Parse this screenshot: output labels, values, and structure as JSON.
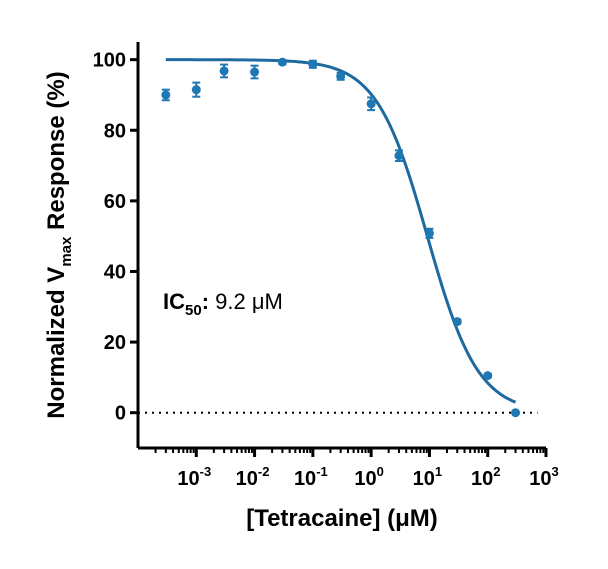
{
  "chart_data": {
    "type": "scatter",
    "title": "",
    "xlabel": "[Tetracaine] (μM)",
    "ylabel_parts": {
      "pre": "Normalized V",
      "sub": "max",
      "post": " Response (%)"
    },
    "x_scale": "log",
    "xlim": [
      0.0001,
      1000
    ],
    "ylim": [
      -10,
      105
    ],
    "x_ticks": [
      {
        "value": 0.001,
        "base": "10",
        "exp": "-3"
      },
      {
        "value": 0.01,
        "base": "10",
        "exp": "-2"
      },
      {
        "value": 0.1,
        "base": "10",
        "exp": "-1"
      },
      {
        "value": 1,
        "base": "10",
        "exp": "0"
      },
      {
        "value": 10,
        "base": "10",
        "exp": "1"
      },
      {
        "value": 100,
        "base": "10",
        "exp": "2"
      },
      {
        "value": 1000,
        "base": "10",
        "exp": "3"
      }
    ],
    "y_ticks": [
      0,
      20,
      40,
      60,
      80,
      100
    ],
    "grid": false,
    "baseline": 0,
    "series": [
      {
        "color": "#1f77b4",
        "points": [
          {
            "x": 0.0003,
            "y": 90.0,
            "err": 1.5
          },
          {
            "x": 0.001,
            "y": 91.5,
            "err": 2.0
          },
          {
            "x": 0.003,
            "y": 96.8,
            "err": 1.8
          },
          {
            "x": 0.01,
            "y": 96.5,
            "err": 1.8
          },
          {
            "x": 0.03,
            "y": 99.3,
            "err": 0.6
          },
          {
            "x": 0.1,
            "y": 98.7,
            "err": 1.0
          },
          {
            "x": 0.3,
            "y": 95.3,
            "err": 1.0
          },
          {
            "x": 1,
            "y": 87.5,
            "err": 1.8
          },
          {
            "x": 3,
            "y": 72.8,
            "err": 1.5
          },
          {
            "x": 10,
            "y": 50.8,
            "err": 1.3
          },
          {
            "x": 30,
            "y": 25.8,
            "err": 0.6
          },
          {
            "x": 100,
            "y": 10.5,
            "err": 0.5
          },
          {
            "x": 300,
            "y": 0.0,
            "err": 0
          }
        ]
      }
    ],
    "fit": {
      "top": 100,
      "bottom": 0,
      "ic50": 9.2,
      "hill": 1.0,
      "color": "#1e6aa0"
    },
    "annotation": {
      "label": "IC",
      "sub": "50",
      "sep": ":",
      "value": " 9.2 μM"
    }
  }
}
